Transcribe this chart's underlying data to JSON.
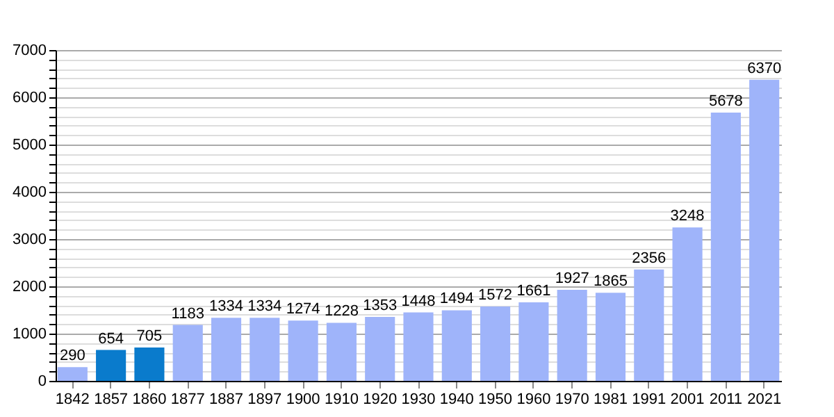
{
  "chart_data": {
    "type": "bar",
    "categories": [
      "1842",
      "1857",
      "1860",
      "1877",
      "1887",
      "1897",
      "1900",
      "1910",
      "1920",
      "1930",
      "1940",
      "1950",
      "1960",
      "1970",
      "1981",
      "1991",
      "2001",
      "2011",
      "2021"
    ],
    "values": [
      290,
      654,
      705,
      1183,
      1334,
      1334,
      1274,
      1228,
      1353,
      1448,
      1494,
      1572,
      1661,
      1927,
      1865,
      2356,
      3248,
      5678,
      6370
    ],
    "colors": [
      "#9fb4fa",
      "#0a7bcc",
      "#0a7bcc",
      "#9fb4fa",
      "#9fb4fa",
      "#9fb4fa",
      "#9fb4fa",
      "#9fb4fa",
      "#9fb4fa",
      "#9fb4fa",
      "#9fb4fa",
      "#9fb4fa",
      "#9fb4fa",
      "#9fb4fa",
      "#9fb4fa",
      "#9fb4fa",
      "#9fb4fa",
      "#9fb4fa",
      "#9fb4fa"
    ],
    "ylim": [
      0,
      7000
    ],
    "yticks": [
      0,
      {
        "value": 200,
        "label": null
      },
      {
        "value": 400,
        "label": null
      },
      {
        "value": 600,
        "label": null
      },
      {
        "value": 800,
        "label": null
      },
      1000,
      {
        "value": 1200,
        "label": null
      },
      {
        "value": 1400,
        "label": null
      },
      {
        "value": 1600,
        "label": null
      },
      {
        "value": 1800,
        "label": null
      },
      2000,
      {
        "value": 2200,
        "label": null
      },
      {
        "value": 2400,
        "label": null
      },
      {
        "value": 2600,
        "label": null
      },
      {
        "value": 2800,
        "label": null
      },
      3000,
      {
        "value": 3200,
        "label": null
      },
      {
        "value": 3400,
        "label": null
      },
      {
        "value": 3600,
        "label": null
      },
      {
        "value": 3800,
        "label": null
      },
      4000,
      {
        "value": 4200,
        "label": null
      },
      {
        "value": 4400,
        "label": null
      },
      {
        "value": 4600,
        "label": null
      },
      {
        "value": 4800,
        "label": null
      },
      5000,
      {
        "value": 5200,
        "label": null
      },
      {
        "value": 5400,
        "label": null
      },
      {
        "value": 5600,
        "label": null
      },
      {
        "value": 5800,
        "label": null
      },
      6000,
      {
        "value": 6200,
        "label": null
      },
      {
        "value": 6400,
        "label": null
      },
      {
        "value": 6600,
        "label": null
      },
      {
        "value": 6800,
        "label": null
      },
      7000
    ],
    "grid": "y",
    "data_labels": true
  }
}
